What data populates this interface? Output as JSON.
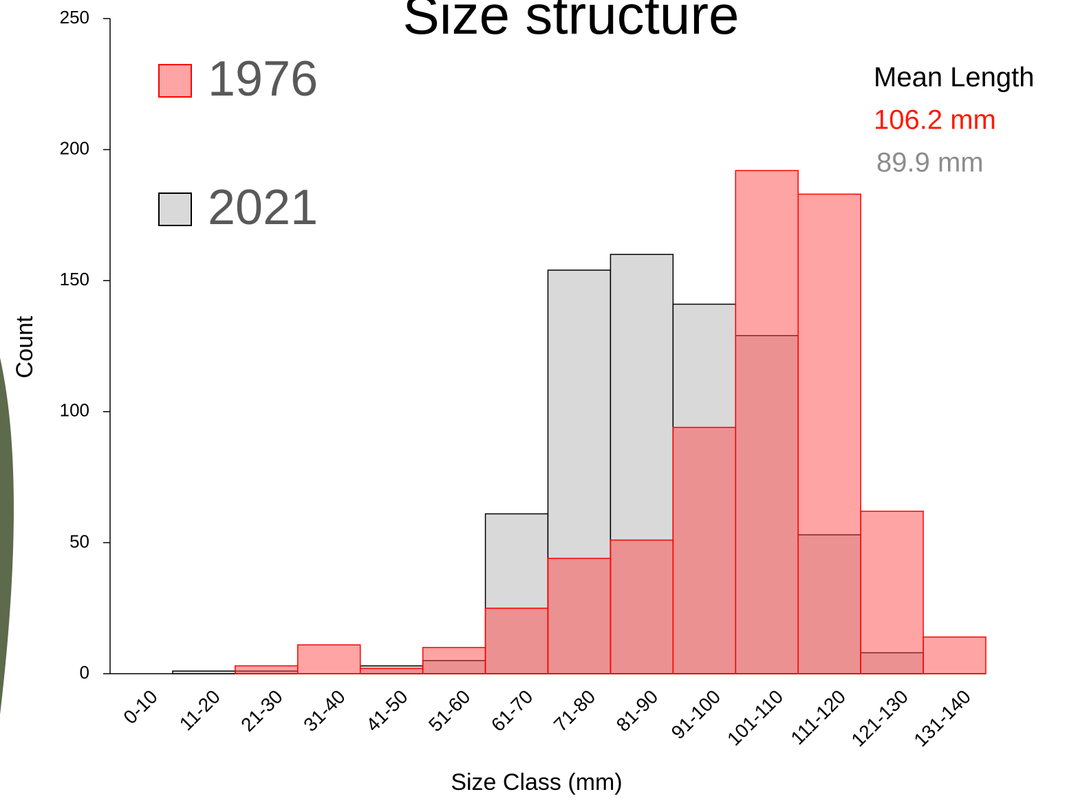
{
  "chart_data": {
    "type": "bar",
    "title": "Size structure",
    "xlabel": "Size Class (mm)",
    "ylabel": "Count",
    "categories": [
      "0-10",
      "11-20",
      "21-30",
      "31-40",
      "41-50",
      "51-60",
      "61-70",
      "71-80",
      "81-90",
      "91-100",
      "101-110",
      "111-120",
      "121-130",
      "131-140"
    ],
    "series": [
      {
        "name": "2021",
        "color": "#d9d9d9",
        "edgecolor": "#000000",
        "values": [
          0,
          1,
          1,
          0,
          3,
          5,
          61,
          154,
          160,
          141,
          129,
          53,
          8,
          0
        ]
      },
      {
        "name": "1976",
        "color": "#ff4a4a",
        "edgecolor": "#ff0000",
        "values": [
          0,
          0,
          3,
          11,
          2,
          10,
          25,
          44,
          51,
          94,
          192,
          183,
          62,
          14
        ]
      }
    ],
    "legend_order": [
      1,
      0
    ],
    "ylim": [
      0,
      250
    ],
    "yticks": [
      0,
      50,
      100,
      150,
      200,
      250
    ],
    "annotations": [
      {
        "text": "Mean Length",
        "color": "#000000"
      },
      {
        "text": "106.2 mm",
        "color": "#ff1a00"
      },
      {
        "text": "89.9 mm",
        "color": "#8c8c8c"
      }
    ]
  }
}
